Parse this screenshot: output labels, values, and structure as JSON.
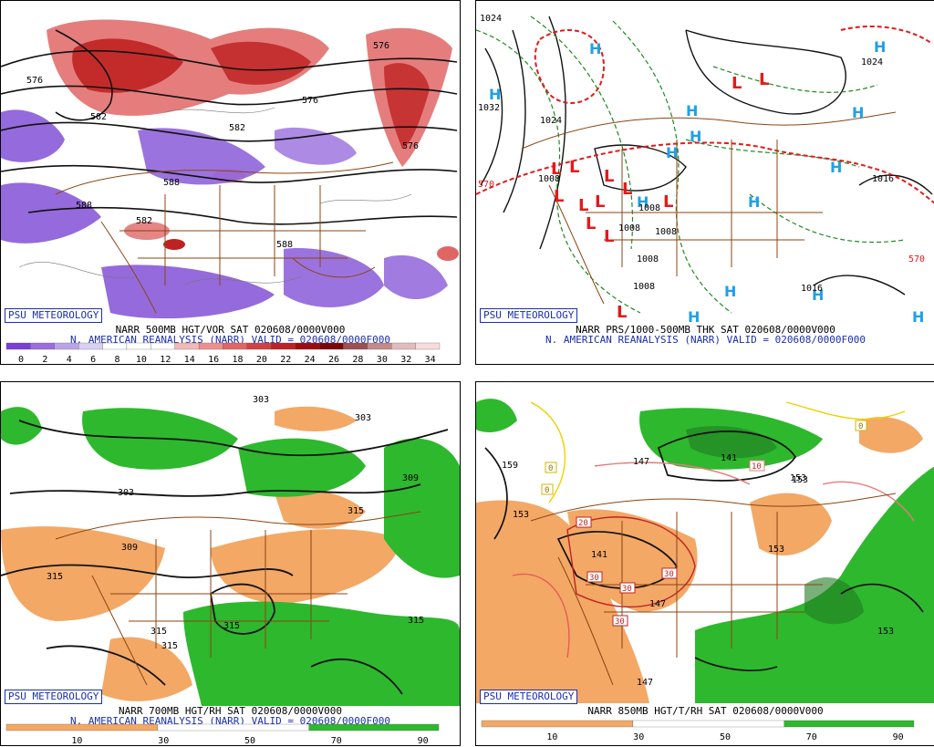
{
  "panels": [
    {
      "badge": "PSU METEOROLOGY",
      "caption1": "NARR 500MB HGT/VOR SAT 020608/0000V000",
      "caption2": "N. AMERICAN REANALYSIS (NARR) VALID = 020608/0000F000",
      "scale_labels": [
        "0",
        "2",
        "4",
        "6",
        "8",
        "10",
        "12",
        "14",
        "16",
        "18",
        "20",
        "22",
        "24",
        "26",
        "28",
        "30",
        "32",
        "34"
      ],
      "scale_colors": [
        "#7b3fd6",
        "#9b6de0",
        "#b9a4ea",
        "#d9d0f2",
        "#ffffff",
        "#ffffff",
        "#ffffff",
        "#f4b8b8",
        "#ee8f8f",
        "#e06666",
        "#d24242",
        "#bf2222",
        "#9e0d0d",
        "#7c0606",
        "#9c5050",
        "#c48a8a",
        "#e2bcbc",
        "#f6dcdc"
      ],
      "map_labels": [
        "576",
        "582",
        "588",
        "582",
        "588",
        "576",
        "576",
        "588",
        "576",
        "582"
      ]
    },
    {
      "badge": "PSU METEOROLOGY",
      "caption1": "NARR PRS/1000-500MB THK SAT 020608/0000V000",
      "caption2": "N. AMERICAN REANALYSIS (NARR) VALID = 020608/0000F000",
      "map_labels": [
        "1024",
        "1032",
        "1024",
        "570",
        "1008",
        "1008",
        "1008",
        "1008",
        "1008",
        "1008",
        "1016",
        "570",
        "1016",
        "1024"
      ]
    },
    {
      "badge": "PSU METEOROLOGY",
      "caption1": "NARR 700MB HGT/RH SAT 020608/0000V000",
      "caption2": "N. AMERICAN REANALYSIS (NARR) VALID = 020608/0000F000",
      "scale_ticks": [
        "10",
        "30",
        "50",
        "70",
        "90"
      ],
      "map_labels": [
        "303",
        "303",
        "303",
        "309",
        "315",
        "309",
        "315",
        "315",
        "315",
        "315",
        "315"
      ]
    },
    {
      "badge": "PSU METEOROLOGY",
      "caption1": "NARR 850MB HGT/T/RH SAT 020608/0000V000",
      "scale_ticks": [
        "10",
        "30",
        "50",
        "70",
        "90"
      ],
      "map_labels": [
        "159",
        "153",
        "147",
        "141",
        "153",
        "141",
        "147",
        "147",
        "153",
        "153",
        "153",
        "0",
        "0",
        "0",
        "20",
        "30",
        "30",
        "30",
        "30",
        "10"
      ]
    }
  ],
  "colors": {
    "badge_blue": "#1a2fb0",
    "dry_orange": "#f3a866",
    "moist_green": "#2eb82e",
    "low_red": "#e41a1a",
    "high_blue": "#1fa0e8",
    "borders_brown": "#8b4513",
    "thickness_red": "#e41a1a",
    "isobar_green": "#1f8a1f"
  }
}
